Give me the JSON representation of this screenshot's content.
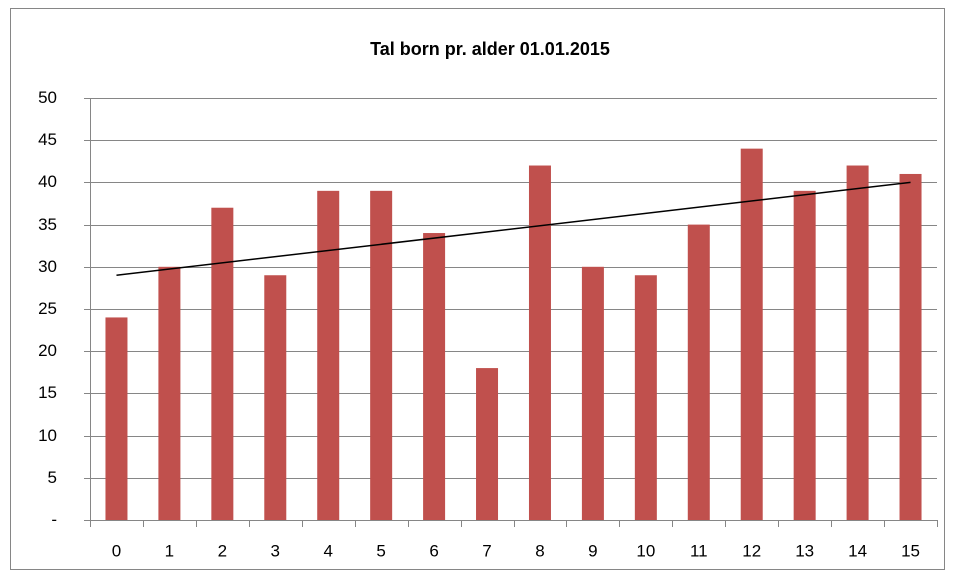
{
  "chart_data": {
    "type": "bar",
    "title": "Tal born pr. alder 01.01.2015",
    "categories": [
      "0",
      "1",
      "2",
      "3",
      "4",
      "5",
      "6",
      "7",
      "8",
      "9",
      "10",
      "11",
      "12",
      "13",
      "14",
      "15"
    ],
    "values": [
      24,
      30,
      37,
      29,
      39,
      39,
      34,
      18,
      42,
      30,
      29,
      35,
      44,
      39,
      42,
      41
    ],
    "color": "#c0504d",
    "ylim": [
      0,
      50
    ],
    "yticks": [
      {
        "value": 0,
        "label": "-"
      },
      5,
      10,
      15,
      20,
      25,
      30,
      35,
      40,
      45,
      50
    ],
    "grid": true,
    "trendline": {
      "color": "#000000",
      "values": [
        29,
        40
      ]
    }
  }
}
